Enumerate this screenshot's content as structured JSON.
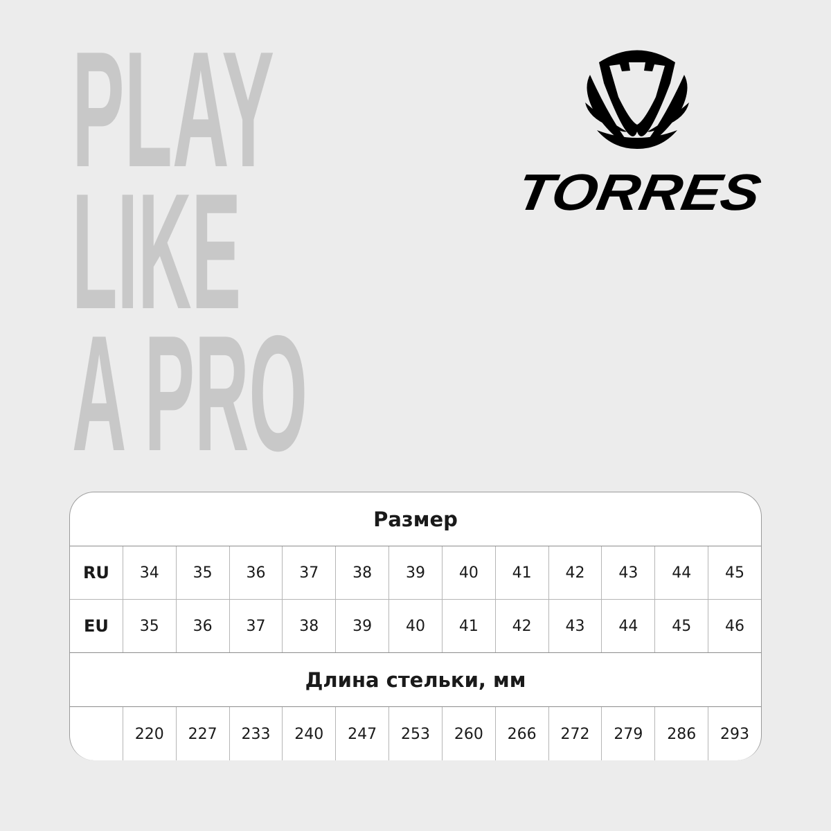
{
  "slogan": {
    "lines": [
      "PLAY",
      "LIKE",
      "A PRO"
    ],
    "color": "#c8c8c8"
  },
  "logo": {
    "wordmark": "TORRES",
    "color": "#000000"
  },
  "table": {
    "size_header": "Размер",
    "rows": [
      {
        "label": "RU",
        "values": [
          "34",
          "35",
          "36",
          "37",
          "38",
          "39",
          "40",
          "41",
          "42",
          "43",
          "44",
          "45"
        ]
      },
      {
        "label": "EU",
        "values": [
          "35",
          "36",
          "37",
          "38",
          "39",
          "40",
          "41",
          "42",
          "43",
          "44",
          "45",
          "46"
        ]
      }
    ],
    "length_header": "Длина стельки, мм",
    "length_row": {
      "label": "",
      "values": [
        "220",
        "227",
        "233",
        "240",
        "247",
        "253",
        "260",
        "266",
        "272",
        "279",
        "286",
        "293"
      ]
    }
  }
}
